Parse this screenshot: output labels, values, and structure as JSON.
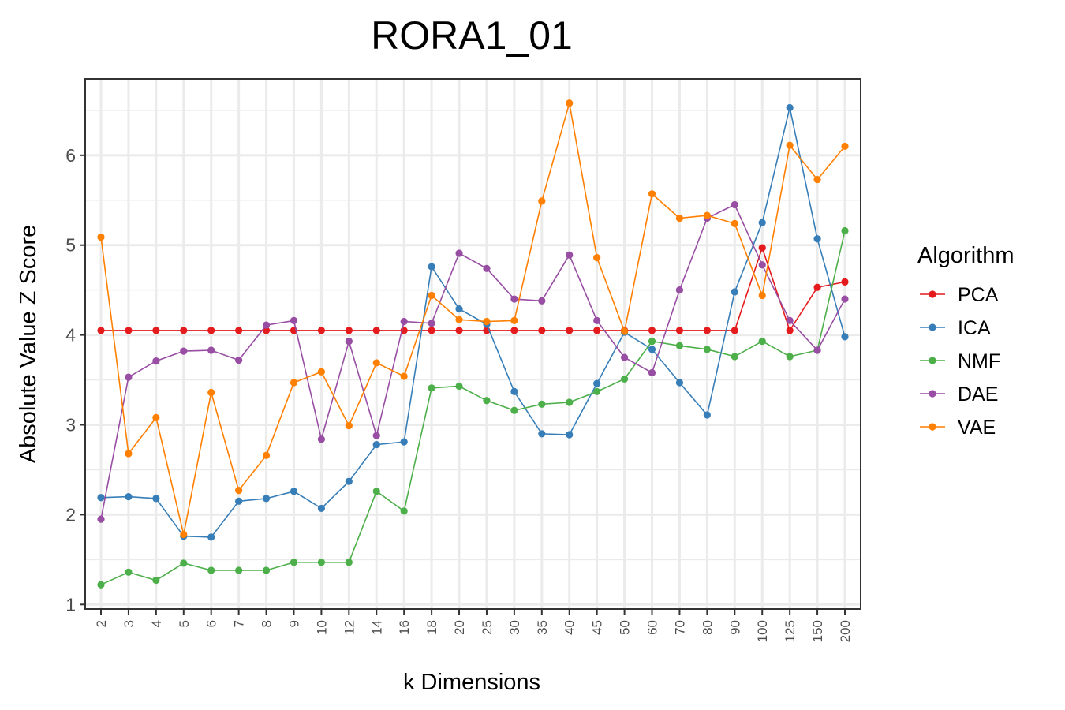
{
  "chart_data": {
    "type": "line",
    "title": "RORA1_01",
    "xlabel": "k Dimensions",
    "ylabel": "Absolute Value Z Score",
    "categories": [
      "2",
      "3",
      "4",
      "5",
      "6",
      "7",
      "8",
      "9",
      "10",
      "12",
      "14",
      "16",
      "18",
      "20",
      "25",
      "30",
      "35",
      "40",
      "45",
      "50",
      "60",
      "70",
      "80",
      "90",
      "100",
      "125",
      "150",
      "200"
    ],
    "y_ticks": [
      "1",
      "2",
      "3",
      "4",
      "5",
      "6"
    ],
    "ylim": [
      0.95,
      6.85
    ],
    "grid": true,
    "legend": {
      "title": "Algorithm",
      "position": "right"
    },
    "series": [
      {
        "name": "PCA",
        "color": "#E41A1C",
        "values": [
          4.05,
          4.05,
          4.05,
          4.05,
          4.05,
          4.05,
          4.05,
          4.05,
          4.05,
          4.05,
          4.05,
          4.05,
          4.05,
          4.05,
          4.05,
          4.05,
          4.05,
          4.05,
          4.05,
          4.05,
          4.05,
          4.05,
          4.05,
          4.05,
          4.97,
          4.05,
          4.53,
          4.59
        ]
      },
      {
        "name": "ICA",
        "color": "#377EB8",
        "values": [
          2.19,
          2.2,
          2.18,
          1.76,
          1.75,
          2.15,
          2.18,
          2.26,
          2.07,
          2.37,
          2.78,
          2.81,
          4.76,
          4.29,
          4.12,
          3.37,
          2.9,
          2.89,
          3.46,
          4.03,
          3.84,
          3.47,
          3.11,
          4.48,
          5.25,
          6.53,
          5.07,
          3.98
        ]
      },
      {
        "name": "NMF",
        "color": "#4DAF4A",
        "values": [
          1.22,
          1.36,
          1.27,
          1.46,
          1.38,
          1.38,
          1.38,
          1.47,
          1.47,
          1.47,
          2.26,
          2.04,
          3.41,
          3.43,
          3.27,
          3.16,
          3.23,
          3.25,
          3.37,
          3.51,
          3.93,
          3.88,
          3.84,
          3.76,
          3.93,
          3.76,
          3.83,
          5.16
        ]
      },
      {
        "name": "DAE",
        "color": "#984EA3",
        "values": [
          1.95,
          3.53,
          3.71,
          3.82,
          3.83,
          3.72,
          4.11,
          4.16,
          2.84,
          3.93,
          2.88,
          4.15,
          4.13,
          4.91,
          4.74,
          4.4,
          4.38,
          4.89,
          4.16,
          3.75,
          3.58,
          4.5,
          5.3,
          5.45,
          4.78,
          4.16,
          3.83,
          4.4
        ]
      },
      {
        "name": "VAE",
        "color": "#FF7F00",
        "values": [
          5.09,
          2.68,
          3.08,
          1.78,
          3.36,
          2.27,
          2.66,
          3.47,
          3.59,
          2.99,
          3.69,
          3.54,
          4.44,
          4.17,
          4.15,
          4.16,
          5.49,
          6.58,
          4.86,
          4.04,
          5.57,
          5.3,
          5.33,
          5.24,
          4.44,
          6.11,
          5.73,
          6.1
        ]
      }
    ]
  }
}
